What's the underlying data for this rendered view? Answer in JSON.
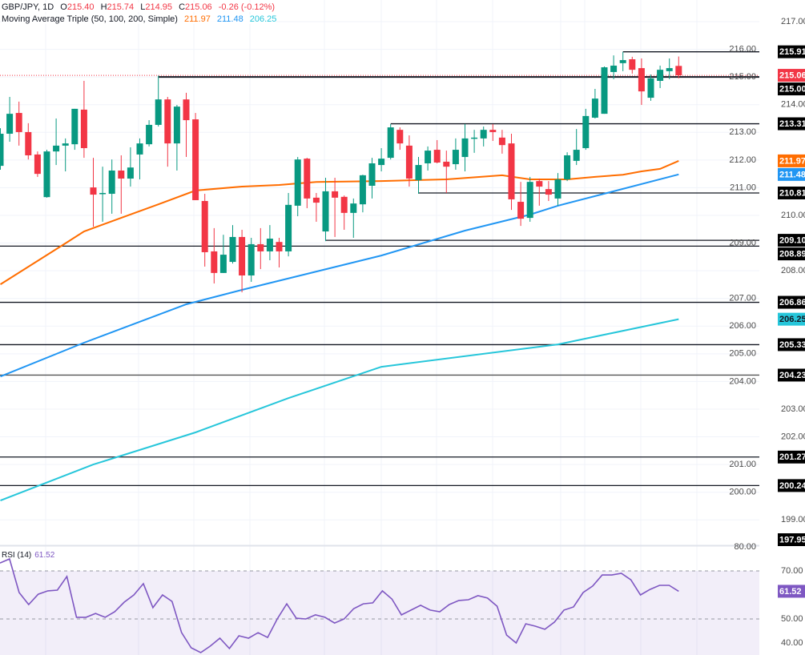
{
  "header": {
    "symbol": "GBP/JPY, 1D",
    "o_label": "O",
    "o": "215.40",
    "h_label": "H",
    "h": "215.74",
    "l_label": "L",
    "l": "214.95",
    "c_label": "C",
    "c": "215.06",
    "change": "-0.26 (-0.12%)",
    "ma_label": "Moving Average Triple (50, 100, 200, Simple)",
    "ma50": "211.97",
    "ma100": "211.48",
    "ma200": "206.25"
  },
  "rsi_header": {
    "label": "RSI (14)",
    "value": "61.52"
  },
  "colors": {
    "up": "#089981",
    "down": "#f23645",
    "ma50": "#ff6d00",
    "ma100": "#2196f3",
    "ma200": "#26c6da",
    "rsi": "#7e57c2",
    "level": "#131722"
  },
  "chart_data": [
    {
      "type": "candlestick",
      "title": "GBP/JPY, 1D",
      "ylim": [
        198.6,
        217.8
      ],
      "y_ticks": [
        "217.00",
        "216.00",
        "215.00",
        "214.00",
        "213.00",
        "212.00",
        "211.00",
        "210.00",
        "209.00",
        "208.00",
        "207.00",
        "206.00",
        "205.00",
        "204.00",
        "203.00",
        "202.00",
        "201.00",
        "200.00",
        "199.00"
      ],
      "ohlc_order": [
        "open",
        "high",
        "low",
        "close"
      ],
      "candles": [
        [
          211.79,
          213.15,
          211.65,
          212.95
        ],
        [
          212.95,
          214.28,
          212.66,
          213.67
        ],
        [
          213.7,
          214.11,
          212.52,
          213.01
        ],
        [
          213.01,
          213.33,
          212.02,
          212.17
        ],
        [
          212.2,
          212.31,
          211.39,
          211.5
        ],
        [
          210.66,
          212.37,
          210.64,
          212.31
        ],
        [
          212.31,
          213.5,
          211.82,
          212.52
        ],
        [
          212.52,
          212.78,
          211.59,
          212.6
        ],
        [
          212.57,
          213.85,
          212.37,
          213.85
        ],
        [
          213.82,
          214.86,
          212.08,
          212.43
        ],
        [
          211.01,
          212.08,
          209.59,
          210.75
        ],
        [
          210.78,
          211.76,
          209.77,
          210.81
        ],
        [
          210.78,
          212.02,
          210.06,
          211.62
        ],
        [
          211.62,
          212.17,
          210.06,
          211.33
        ],
        [
          211.33,
          212.46,
          211.04,
          211.73
        ],
        [
          212.2,
          212.78,
          211.3,
          212.6
        ],
        [
          212.57,
          213.44,
          212.49,
          213.27
        ],
        [
          213.27,
          215.05,
          213.21,
          214.19
        ],
        [
          214.19,
          214.28,
          211.76,
          212.6
        ],
        [
          212.6,
          213.99,
          211.62,
          213.93
        ],
        [
          214.19,
          214.43,
          212.11,
          213.44
        ],
        [
          213.47,
          213.7,
          210.55,
          210.55
        ],
        [
          210.52,
          210.78,
          208.15,
          208.67
        ],
        [
          208.7,
          209.54,
          207.54,
          207.92
        ],
        [
          207.92,
          209.3,
          207.92,
          208.58
        ],
        [
          208.32,
          209.65,
          208.26,
          209.22
        ],
        [
          209.22,
          209.48,
          207.22,
          207.83
        ],
        [
          207.83,
          209.19,
          207.6,
          208.96
        ],
        [
          208.96,
          209.54,
          208.06,
          208.7
        ],
        [
          208.7,
          209.65,
          208.38,
          209.16
        ],
        [
          209.04,
          209.19,
          208.12,
          208.7
        ],
        [
          208.7,
          210.81,
          208.52,
          210.38
        ],
        [
          210.35,
          212.11,
          209.97,
          212.02
        ],
        [
          212.05,
          212.08,
          210.26,
          210.61
        ],
        [
          210.64,
          210.81,
          209.77,
          210.46
        ],
        [
          209.42,
          211.36,
          209.07,
          210.87
        ],
        [
          210.87,
          211.36,
          209.22,
          210.64
        ],
        [
          210.67,
          210.72,
          209.48,
          210.09
        ],
        [
          210.09,
          210.61,
          209.19,
          210.43
        ],
        [
          210.4,
          211.47,
          210.11,
          211.45
        ],
        [
          211.07,
          212.08,
          210.61,
          211.88
        ],
        [
          211.82,
          212.43,
          211.59,
          212.05
        ],
        [
          212.08,
          213.3,
          212.02,
          213.18
        ],
        [
          213.09,
          213.18,
          212.37,
          212.6
        ],
        [
          212.52,
          212.89,
          211.04,
          211.33
        ],
        [
          211.27,
          212.11,
          210.78,
          211.82
        ],
        [
          211.88,
          212.49,
          211.62,
          212.34
        ],
        [
          212.37,
          212.72,
          211.88,
          211.91
        ],
        [
          211.94,
          212.34,
          210.81,
          211.76
        ],
        [
          211.85,
          212.78,
          211.65,
          212.37
        ],
        [
          212.11,
          213.3,
          211.59,
          212.78
        ],
        [
          212.78,
          213.09,
          212.26,
          212.81
        ],
        [
          212.78,
          213.21,
          212.49,
          213.09
        ],
        [
          213.09,
          213.3,
          212.69,
          213.01
        ],
        [
          212.81,
          213.09,
          212.23,
          212.54
        ],
        [
          212.6,
          212.95,
          210.2,
          210.58
        ],
        [
          210.49,
          211.21,
          209.62,
          209.88
        ],
        [
          209.91,
          211.39,
          209.77,
          211.21
        ],
        [
          211.24,
          211.33,
          210.35,
          211.04
        ],
        [
          210.95,
          211.24,
          210.52,
          210.75
        ],
        [
          210.61,
          211.53,
          210.35,
          211.3
        ],
        [
          211.3,
          212.28,
          211.24,
          212.17
        ],
        [
          211.97,
          213.12,
          211.82,
          212.37
        ],
        [
          212.43,
          213.85,
          212.37,
          213.59
        ],
        [
          213.53,
          214.57,
          213.5,
          214.22
        ],
        [
          213.67,
          215.38,
          213.67,
          215.35
        ],
        [
          215.18,
          215.78,
          214.92,
          215.41
        ],
        [
          215.5,
          215.91,
          215.21,
          215.61
        ],
        [
          215.64,
          215.73,
          215.12,
          215.26
        ],
        [
          215.32,
          215.67,
          213.99,
          214.48
        ],
        [
          214.25,
          215.09,
          214.14,
          214.95
        ],
        [
          214.86,
          215.41,
          214.6,
          215.26
        ],
        [
          215.21,
          215.67,
          214.92,
          215.32
        ],
        [
          215.4,
          215.74,
          214.95,
          215.06
        ]
      ],
      "moving_averages": [
        {
          "name": "SMA 50",
          "value_label": "211.97",
          "color_key": "ma50",
          "points": [
            [
              0,
              207.51
            ],
            [
              7,
              208.99
            ],
            [
              9,
              209.42
            ],
            [
              13,
              209.91
            ],
            [
              17,
              210.4
            ],
            [
              21,
              210.9
            ],
            [
              26,
              211.04
            ],
            [
              30,
              211.1
            ],
            [
              34,
              211.21
            ],
            [
              41,
              211.24
            ],
            [
              48,
              211.3
            ],
            [
              54,
              211.45
            ],
            [
              57,
              211.3
            ],
            [
              61,
              211.3
            ],
            [
              64,
              211.39
            ],
            [
              67,
              211.47
            ],
            [
              69,
              211.59
            ],
            [
              71,
              211.68
            ],
            [
              73,
              211.97
            ]
          ]
        },
        {
          "name": "SMA 100",
          "value_label": "211.48",
          "color_key": "ma100",
          "points": [
            [
              0,
              204.18
            ],
            [
              9,
              205.4
            ],
            [
              20,
              206.79
            ],
            [
              26,
              207.31
            ],
            [
              41,
              208.55
            ],
            [
              50,
              209.45
            ],
            [
              57,
              210.03
            ],
            [
              60,
              210.35
            ],
            [
              73,
              211.48
            ]
          ]
        },
        {
          "name": "SMA 200",
          "value_label": "206.25",
          "color_key": "ma200",
          "points": [
            [
              0,
              199.7
            ],
            [
              10,
              201.0
            ],
            [
              21,
              202.16
            ],
            [
              31,
              203.4
            ],
            [
              41,
              204.53
            ],
            [
              60,
              205.34
            ],
            [
              73,
              206.25
            ]
          ]
        }
      ],
      "levels": [
        {
          "label": "215.91",
          "value": 215.91,
          "from_candle": 67
        },
        {
          "label": "215.00",
          "value": 215.0,
          "from_candle": 17,
          "bold": true
        },
        {
          "label": "213.31",
          "value": 213.31,
          "from_candle": 42
        },
        {
          "label": "210.81",
          "value": 210.81,
          "from_candle": 45
        },
        {
          "label": "209.10",
          "value": 209.1,
          "from_candle": 35
        },
        {
          "label": "208.89",
          "value": 208.89,
          "from_candle": null
        },
        {
          "label": "206.86",
          "value": 206.86,
          "from_candle": null
        },
        {
          "label": "205.33",
          "value": 205.33,
          "from_candle": null
        },
        {
          "label": "204.23",
          "value": 204.23,
          "from_candle": null,
          "muted": true
        },
        {
          "label": "201.27",
          "value": 201.27,
          "from_candle": null
        },
        {
          "label": "200.24",
          "value": 200.24,
          "from_candle": null
        },
        {
          "label": "197.95",
          "value": 197.95,
          "from_candle": null,
          "offscreen": true
        }
      ],
      "last_price": {
        "label": "215.06",
        "value": 215.06
      }
    },
    {
      "type": "line",
      "title": "RSI (14)",
      "ylim": [
        30,
        80
      ],
      "y_ticks": [
        "80.00",
        "70.00",
        "50.00",
        "40.00"
      ],
      "bands": [
        70,
        50,
        30
      ],
      "last": {
        "label": "61.52",
        "value": 61.52
      },
      "values": [
        73.3,
        75,
        61,
        56,
        60.3,
        61.7,
        62,
        67.7,
        50.7,
        50.7,
        52.3,
        50.7,
        53,
        57,
        60,
        64.7,
        54.7,
        60,
        57.3,
        44.3,
        38,
        36,
        38.7,
        42,
        37.7,
        43,
        42,
        44.3,
        42.3,
        50,
        56.3,
        50.3,
        50,
        51.7,
        50.7,
        48.3,
        50,
        54.3,
        56.3,
        56.7,
        61.7,
        58.3,
        51.7,
        53.7,
        55.7,
        53.7,
        53,
        56,
        57.7,
        58,
        59.7,
        58.7,
        55.3,
        43.3,
        40,
        48,
        47,
        45.7,
        48.7,
        53.7,
        55,
        61,
        63.7,
        68.3,
        68.3,
        69,
        66.3,
        60,
        62.3,
        64,
        64,
        61.52
      ]
    }
  ]
}
